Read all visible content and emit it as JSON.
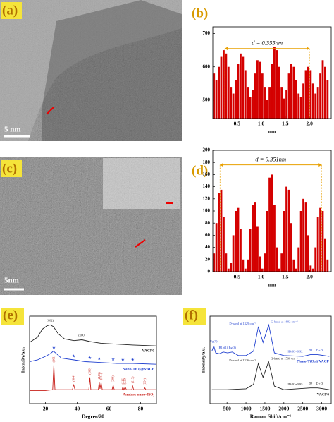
{
  "images": [
    {
      "panel_label": "(a)",
      "scale_bar": "5 nm"
    },
    {
      "panel_label": "(c)",
      "scale_bar": "5nm"
    }
  ],
  "chart_data": [
    {
      "type": "bar",
      "panel_label": "(b)",
      "xlabel": "nm",
      "color": "#d40000",
      "annotation": {
        "text": "d = 0.355nm",
        "x": [
          0.25,
          2.0
        ],
        "y": 655
      },
      "x": [
        0.025,
        0.075,
        0.125,
        0.175,
        0.225,
        0.275,
        0.325,
        0.375,
        0.425,
        0.475,
        0.525,
        0.575,
        0.625,
        0.675,
        0.725,
        0.775,
        0.825,
        0.875,
        0.925,
        0.975,
        1.025,
        1.075,
        1.125,
        1.175,
        1.225,
        1.275,
        1.325,
        1.375,
        1.425,
        1.475,
        1.525,
        1.575,
        1.625,
        1.675,
        1.725,
        1.775,
        1.825,
        1.875,
        1.925,
        1.975,
        2.025,
        2.075,
        2.125,
        2.175,
        2.225,
        2.275,
        2.325,
        2.375
      ],
      "values": [
        580,
        560,
        600,
        630,
        650,
        640,
        600,
        540,
        520,
        560,
        610,
        640,
        630,
        590,
        540,
        510,
        530,
        580,
        620,
        615,
        580,
        540,
        500,
        540,
        610,
        660,
        650,
        600,
        540,
        505,
        530,
        580,
        610,
        600,
        560,
        520,
        510,
        550,
        590,
        600,
        590,
        550,
        520,
        540,
        580,
        620,
        600,
        560
      ],
      "xlim": [
        0,
        2.45
      ],
      "xticks": [
        0.5,
        {
          "value": 1,
          "label": "1.0"
        },
        1.5,
        {
          "value": 2,
          "label": "2.0"
        }
      ],
      "ylim": [
        445,
        720
      ],
      "yticks": [
        500,
        600,
        700
      ]
    },
    {
      "type": "bar",
      "panel_label": "(d)",
      "xlabel": "nm",
      "color": "#d40000",
      "annotation": {
        "text": "d = 0.351nm",
        "x": [
          0.15,
          2.25
        ],
        "y": 176
      },
      "x": [
        0.025,
        0.075,
        0.125,
        0.175,
        0.225,
        0.275,
        0.325,
        0.375,
        0.425,
        0.475,
        0.525,
        0.575,
        0.625,
        0.675,
        0.725,
        0.775,
        0.825,
        0.875,
        0.925,
        0.975,
        1.025,
        1.075,
        1.125,
        1.175,
        1.225,
        1.275,
        1.325,
        1.375,
        1.425,
        1.475,
        1.525,
        1.575,
        1.625,
        1.675,
        1.725,
        1.775,
        1.825,
        1.875,
        1.925,
        1.975,
        2.025,
        2.075,
        2.125,
        2.175,
        2.225,
        2.275,
        2.325,
        2.375
      ],
      "values": [
        30,
        80,
        130,
        135,
        90,
        30,
        5,
        15,
        60,
        100,
        105,
        70,
        20,
        5,
        20,
        70,
        110,
        115,
        75,
        25,
        5,
        30,
        100,
        155,
        160,
        110,
        40,
        5,
        30,
        100,
        140,
        135,
        80,
        20,
        5,
        40,
        100,
        120,
        115,
        60,
        10,
        5,
        40,
        90,
        105,
        100,
        55,
        20
      ],
      "xlim": [
        0,
        2.45
      ],
      "xticks": [
        0.5,
        {
          "value": 1,
          "label": "1.0"
        },
        1.5,
        {
          "value": 2,
          "label": "2.0"
        }
      ],
      "ylim": [
        0,
        200
      ],
      "yticks": [
        0,
        20,
        40,
        60,
        80,
        100,
        120,
        140,
        160,
        180,
        200
      ]
    },
    {
      "type": "line",
      "panel_label": "(e)",
      "xlabel": "Degree/2θ",
      "ylabel": "Intensity/a.u.",
      "xlim": [
        10,
        90
      ],
      "xticks": [
        20,
        40,
        60,
        80
      ],
      "ylim": [
        0,
        100
      ],
      "series": [
        {
          "name": "VACF0",
          "color": "#222222",
          "x": [
            10,
            15,
            18,
            21,
            23,
            25,
            28,
            32,
            38,
            43,
            48,
            55,
            65,
            75,
            90
          ],
          "values": [
            70,
            76,
            85,
            89,
            90,
            88,
            80,
            74,
            72,
            73,
            71,
            69,
            68,
            67,
            66
          ]
        },
        {
          "name": "Nano-TiO₂@VACF",
          "color": "#1f3fcf",
          "x": [
            10,
            15,
            20,
            23,
            25,
            27,
            30,
            38,
            45,
            55,
            65,
            75,
            90
          ],
          "values": [
            48,
            50,
            54,
            57,
            60,
            57,
            52,
            50,
            48,
            47,
            46,
            46,
            45
          ]
        },
        {
          "name": "Anatase nano-TiO₂",
          "color": "#c8201a",
          "x": [
            10,
            20,
            24.6,
            25.3,
            26,
            37,
            37.8,
            38.6,
            47.4,
            48,
            48.6,
            53.4,
            53.9,
            54.4,
            55.1,
            55.8,
            62,
            62.7,
            63.4,
            68.3,
            68.8,
            69.5,
            70.3,
            71,
            74.4,
            75,
            75.6,
            82.1,
            82.7,
            83.3,
            90
          ],
          "values": [
            15,
            15,
            16,
            44,
            16,
            16,
            22,
            16,
            16,
            30,
            16,
            16,
            25,
            17,
            24,
            16,
            16,
            21,
            16,
            16,
            19,
            16,
            19,
            16,
            16,
            20,
            16,
            16,
            18,
            16,
            16
          ]
        }
      ],
      "stars": {
        "series": 1,
        "x": [
          25.3,
          37.8,
          48,
          53.9,
          62.7,
          68.8,
          75
        ]
      },
      "annotations": [
        {
          "text": "(002)",
          "x": 23,
          "series": 0
        },
        {
          "text": "(100)",
          "x": 43,
          "series": 0
        },
        {
          "text": "(101)",
          "x": 25.3,
          "series": 2
        },
        {
          "text": "(004)",
          "x": 37.8,
          "series": 2
        },
        {
          "text": "(200)",
          "x": 48,
          "series": 2
        },
        {
          "text": "(105)",
          "x": 53.9,
          "series": 2
        },
        {
          "text": "(211)",
          "x": 55.1,
          "series": 2
        },
        {
          "text": "(204)",
          "x": 62.7,
          "series": 2
        },
        {
          "text": "(116)",
          "x": 68.8,
          "series": 2
        },
        {
          "text": "(220)",
          "x": 70.3,
          "series": 2
        },
        {
          "text": "(215)",
          "x": 75,
          "series": 2
        },
        {
          "text": "(224)",
          "x": 82.7,
          "series": 2
        }
      ]
    },
    {
      "type": "line",
      "panel_label": "(f)",
      "xlabel": "Raman Shift/cm⁻¹",
      "ylabel": "Intensity/a.u.",
      "xlim": [
        50,
        3250
      ],
      "xticks": [
        500,
        1000,
        1500,
        2000,
        2500,
        3000
      ],
      "ylim": [
        0,
        100
      ],
      "series": [
        {
          "name": "Nano-TiO₂@VACF",
          "color": "#1f3fcf",
          "x": [
            100,
            150,
            200,
            300,
            400,
            515,
            640,
            800,
            1000,
            1200,
            1329,
            1450,
            1602,
            1750,
            2000,
            2500,
            2700,
            2900,
            3200
          ],
          "values": [
            60,
            66,
            58,
            57,
            59,
            58,
            59,
            55,
            55,
            60,
            88,
            70,
            90,
            58,
            55,
            54,
            56,
            56,
            54
          ]
        },
        {
          "name": "VACF0",
          "color": "#222222",
          "x": [
            100,
            500,
            1000,
            1200,
            1326,
            1450,
            1598,
            1750,
            2000,
            2700,
            2900,
            3200
          ],
          "values": [
            16,
            16,
            17,
            22,
            46,
            30,
            48,
            20,
            16,
            18,
            18,
            16
          ]
        }
      ],
      "annotations": [
        {
          "text": "Eg(1)",
          "x": 150,
          "series": 0
        },
        {
          "text": "B1g(1)",
          "x": 400,
          "series": 0
        },
        {
          "text": "Eg(3)",
          "x": 640,
          "series": 0
        },
        {
          "text": "D-band at 1329 cm⁻¹",
          "x": 1329,
          "series": 0
        },
        {
          "text": "G-band at 1602 cm⁻¹",
          "x": 1602,
          "series": 0
        },
        {
          "text": "ID/IG=0.92",
          "x": 2300,
          "series": 0
        },
        {
          "text": "2D",
          "x": 2700,
          "series": 0
        },
        {
          "text": "D+D'",
          "x": 2950,
          "series": 0
        },
        {
          "text": "D-band at 1326 cm⁻¹",
          "x": 1326,
          "series": 1
        },
        {
          "text": "G-band at 1598 cm⁻¹",
          "x": 1598,
          "series": 1
        },
        {
          "text": "ID/IG=0.95",
          "x": 2300,
          "series": 1
        },
        {
          "text": "2D",
          "x": 2700,
          "series": 1
        },
        {
          "text": "D+D'",
          "x": 2950,
          "series": 1
        }
      ]
    }
  ]
}
